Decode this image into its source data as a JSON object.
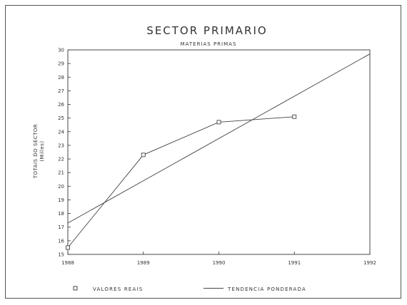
{
  "chart_data": {
    "type": "line",
    "title": "SECTOR PRIMARIO",
    "subtitle": "MATERIAS PRIMAS",
    "ylabel": [
      "TOTAIS DO SECTOR",
      "(Milles)"
    ],
    "xlabel": "",
    "xlim": [
      1988,
      1992
    ],
    "ylim": [
      15,
      30
    ],
    "x_ticks": [
      1988,
      1989,
      1990,
      1991,
      1992
    ],
    "y_ticks": [
      15,
      16,
      17,
      18,
      19,
      20,
      21,
      22,
      23,
      24,
      25,
      26,
      27,
      28,
      29,
      30
    ],
    "grid": false,
    "legend_position": "bottom",
    "series": [
      {
        "name": "VALORES REAIS",
        "marker": "square",
        "x": [
          1988,
          1989,
          1990,
          1991
        ],
        "y": [
          15.5,
          22.3,
          24.7,
          25.1
        ]
      },
      {
        "name": "TENDENCIA PONDERADA",
        "marker": "none",
        "x": [
          1988,
          1992
        ],
        "y": [
          17.3,
          29.7
        ]
      }
    ],
    "colors": {
      "line": "#444444",
      "axis": "#333333"
    }
  }
}
